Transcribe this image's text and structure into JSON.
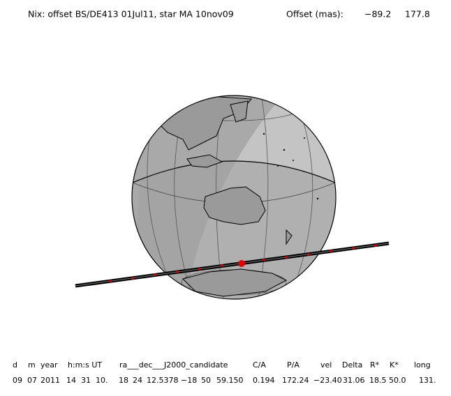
{
  "header": {
    "title": "Nix: offset BS/DE413 01Jul11, star MA 10nov09",
    "offset_label": "Offset (mas):",
    "offset_values": [
      "−89.2",
      "177.8"
    ]
  },
  "table": {
    "columns": [
      "d",
      "m",
      "year",
      "h:m:s UT",
      "ra___dec___J2000_candidate",
      "C/A",
      "P/A",
      "vel",
      "Delta",
      "R*",
      "K*",
      "long"
    ],
    "row": [
      "09",
      "07",
      "2011",
      "14",
      "31",
      "10.",
      "18",
      "24",
      "12.5378",
      "−18",
      "50",
      "59.150",
      "0.194",
      "172.24",
      "−23.40",
      "31.06",
      "18.5",
      "50.0",
      "131."
    ]
  }
}
